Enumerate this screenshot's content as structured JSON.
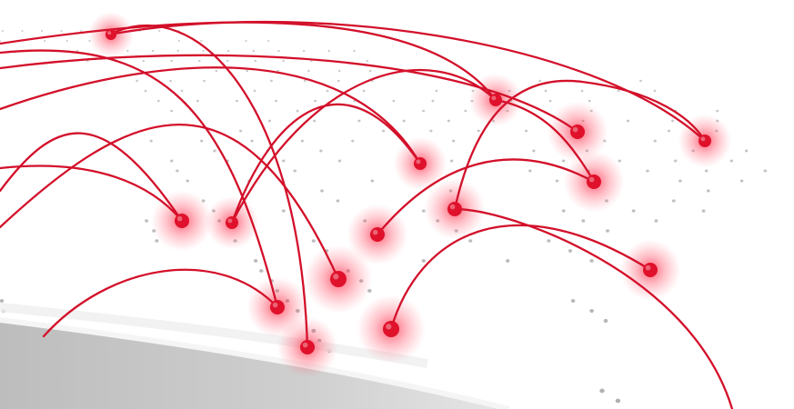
{
  "scene": {
    "description_free": true,
    "colors": {
      "background": "#ffffff",
      "dot": "#a9a9a9",
      "route": "#d3102a",
      "node": "#e0112b",
      "glow": "#ff2a45",
      "band_dark": "#bdbdbd",
      "band_light": "#ebebeb"
    },
    "icons": [
      "network-node-icon"
    ]
  }
}
